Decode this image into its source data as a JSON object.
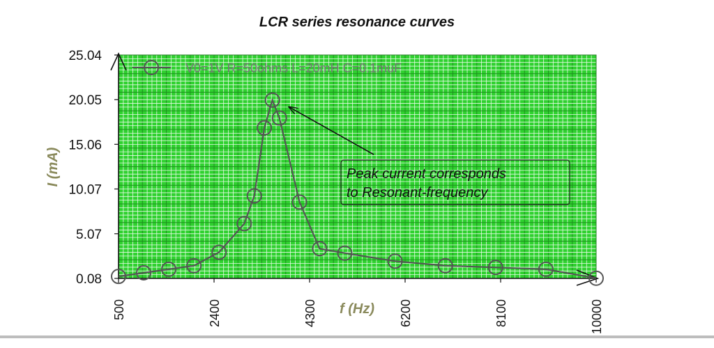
{
  "chart_data": {
    "type": "line",
    "title": "LCR series resonance curves",
    "xlabel": "f (Hz)",
    "ylabel": "I (mA)",
    "xlim": [
      500,
      10000
    ],
    "ylim": [
      0.08,
      25.04
    ],
    "xticks": [
      "500",
      "2400",
      "4300",
      "6200",
      "8100",
      "10000"
    ],
    "yticks": [
      "0.08",
      "5.07",
      "10.07",
      "15.06",
      "20.05",
      "25.04"
    ],
    "grid": true,
    "legend_position": "top-left",
    "series": [
      {
        "name": "V0=1V R=50ohms L=20mH C=0.1muF",
        "x": [
          500,
          1000,
          1500,
          2000,
          2500,
          3000,
          3200,
          3400,
          3560,
          3700,
          4100,
          4500,
          5000,
          6000,
          7000,
          8000,
          9000,
          10000
        ],
        "y": [
          0.3,
          0.7,
          1.1,
          1.5,
          3.0,
          6.2,
          9.3,
          16.9,
          20.0,
          18.0,
          8.6,
          3.4,
          2.9,
          2.0,
          1.5,
          1.3,
          1.1,
          0.1
        ]
      }
    ],
    "annotation": {
      "lines": [
        "Peak current corresponds",
        "to Resonant-frequency"
      ],
      "points_to": {
        "x": 3900,
        "y": 19.2
      }
    }
  },
  "colors": {
    "grid_background": "#2fd12f",
    "grid_minor": "#ffffff",
    "series_line": "#555555",
    "marker": "#555555"
  }
}
